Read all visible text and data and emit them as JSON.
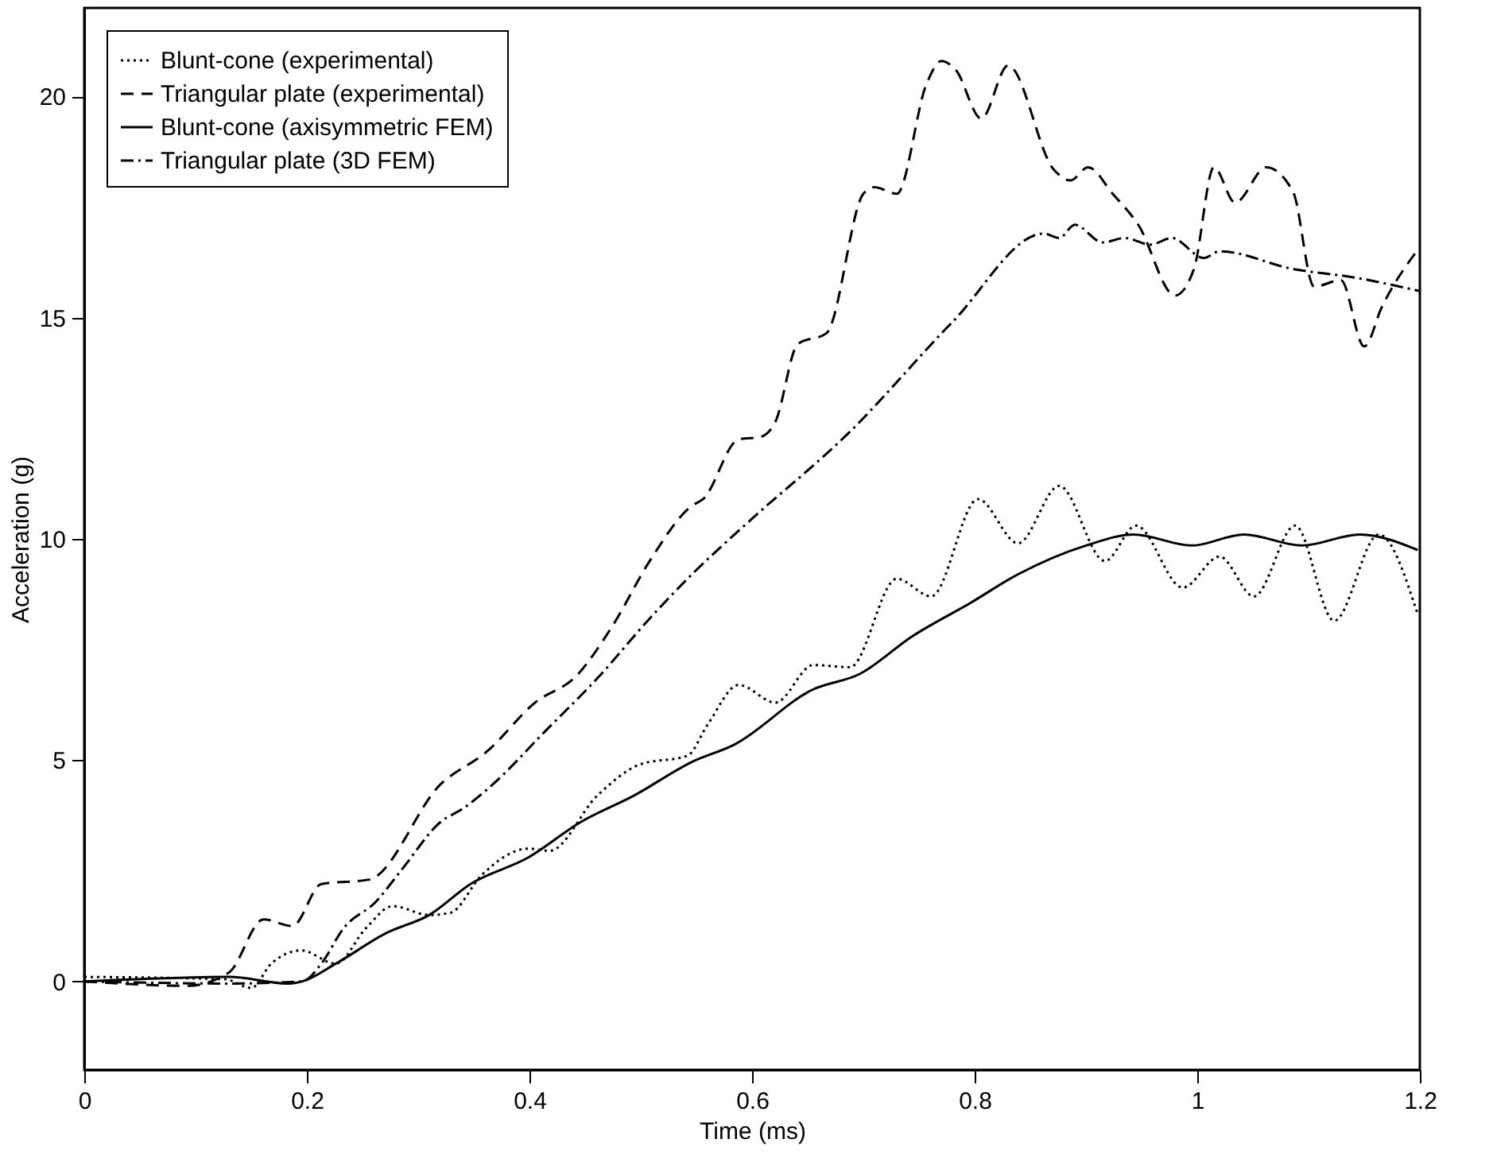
{
  "chart_data": {
    "type": "line",
    "xlabel": "Time (ms)",
    "ylabel": "Acceleration (g)",
    "xlim": [
      0,
      1.2
    ],
    "xticks": [
      0,
      0.2,
      0.4,
      0.6,
      0.8,
      1,
      1.2
    ],
    "ylim": [
      -2,
      22
    ],
    "yticks": [
      0,
      5,
      10,
      15,
      20
    ],
    "grid": false,
    "legend": "top left",
    "marker": "none",
    "series": [
      {
        "name": "Blunt-cone (experimental)",
        "color": "#000000",
        "line_style": "dotted",
        "x": [
          0,
          0.126,
          0.15,
          0.168,
          0.195,
          0.226,
          0.253,
          0.277,
          0.31,
          0.329,
          0.357,
          0.399,
          0.418,
          0.461,
          0.499,
          0.542,
          0.56,
          0.588,
          0.621,
          0.655,
          0.688,
          0.73,
          0.761,
          0.803,
          0.839,
          0.876,
          0.917,
          0.945,
          0.987,
          1.02,
          1.051,
          1.088,
          1.123,
          1.163,
          1.198
        ],
        "values": [
          0.1,
          0.05,
          -0.15,
          0.4,
          0.7,
          0.4,
          1.2,
          1.7,
          1.5,
          1.55,
          2.4,
          3.0,
          2.95,
          4.2,
          4.9,
          5.1,
          5.8,
          6.7,
          6.3,
          7.15,
          7.1,
          9.1,
          8.7,
          10.9,
          9.9,
          11.2,
          9.5,
          10.3,
          8.9,
          9.6,
          8.7,
          10.3,
          8.15,
          10.1,
          8.3
        ]
      },
      {
        "name": "Triangular plate (experimental)",
        "color": "#000000",
        "line_style": "dashed",
        "x": [
          0,
          0.093,
          0.13,
          0.161,
          0.187,
          0.213,
          0.256,
          0.32,
          0.362,
          0.405,
          0.442,
          0.475,
          0.508,
          0.546,
          0.556,
          0.588,
          0.607,
          0.621,
          0.641,
          0.667,
          0.7,
          0.71,
          0.73,
          0.757,
          0.77,
          0.783,
          0.806,
          0.83,
          0.871,
          0.886,
          0.902,
          0.924,
          0.947,
          0.98,
          0.997,
          1.015,
          1.034,
          1.062,
          1.086,
          1.105,
          1.129,
          1.15,
          1.166,
          1.2
        ],
        "values": [
          0,
          -0.1,
          0.2,
          1.4,
          1.25,
          2.2,
          2.3,
          4.45,
          5.2,
          6.3,
          6.9,
          8.05,
          9.5,
          10.75,
          10.9,
          12.25,
          12.3,
          12.65,
          14.4,
          14.65,
          17.8,
          17.95,
          17.8,
          20.3,
          20.8,
          20.6,
          19.5,
          20.7,
          18.35,
          18.1,
          18.4,
          17.8,
          17.1,
          15.5,
          16.1,
          18.4,
          17.6,
          18.4,
          17.85,
          15.7,
          15.85,
          14.35,
          15.25,
          16.6
        ]
      },
      {
        "name": "Blunt-cone (axisymmetric FEM)",
        "color": "#000000",
        "line_style": "solid",
        "x": [
          0,
          0.13,
          0.183,
          0.196,
          0.226,
          0.272,
          0.31,
          0.347,
          0.399,
          0.446,
          0.494,
          0.546,
          0.584,
          0.655,
          0.697,
          0.744,
          0.796,
          0.839,
          0.9,
          0.943,
          0.995,
          1.042,
          1.094,
          1.146,
          1.198
        ],
        "values": [
          0,
          0.1,
          -0.05,
          0,
          0.4,
          1.1,
          1.5,
          2.2,
          2.8,
          3.6,
          4.2,
          4.96,
          5.35,
          6.6,
          6.95,
          7.8,
          8.55,
          9.2,
          9.85,
          10.1,
          9.85,
          10.1,
          9.85,
          10.1,
          9.75
        ]
      },
      {
        "name": "Triangular plate (3D FEM)",
        "color": "#000000",
        "line_style": "dashdot",
        "x": [
          0,
          0.13,
          0.196,
          0.213,
          0.233,
          0.262,
          0.286,
          0.32,
          0.34,
          0.367,
          0.414,
          0.461,
          0.508,
          0.546,
          0.593,
          0.687,
          0.78,
          0.862,
          0.876,
          0.89,
          0.915,
          0.935,
          0.958,
          0.977,
          1.006,
          1.02,
          1.086,
          1.143,
          1.2
        ],
        "values": [
          0,
          -0.05,
          0,
          0.4,
          1.2,
          1.8,
          2.55,
          3.6,
          3.9,
          4.45,
          5.65,
          6.85,
          8.2,
          9.2,
          10.3,
          12.4,
          14.9,
          16.9,
          16.8,
          17.1,
          16.7,
          16.8,
          16.65,
          16.8,
          16.35,
          16.5,
          16.1,
          15.9,
          15.6
        ]
      }
    ]
  }
}
